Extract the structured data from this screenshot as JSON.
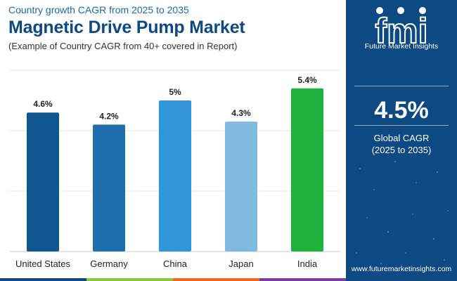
{
  "header": {
    "kicker": "Country growth CAGR from 2025 to 2035",
    "title": "Magnetic Drive Pump Market",
    "subtitle": "(Example of Country CAGR from 40+ covered in Report)"
  },
  "chart_data": {
    "type": "bar",
    "title": "Magnetic Drive Pump Market",
    "subtitle": "(Example of Country CAGR from 40+ covered in Report)",
    "categories": [
      "United States",
      "Germany",
      "China",
      "Japan",
      "India"
    ],
    "values": [
      4.6,
      4.2,
      5.0,
      4.3,
      5.4
    ],
    "value_labels": [
      "4.6%",
      "4.2%",
      "5%",
      "4.3%",
      "5.4%"
    ],
    "colors": [
      "#0d568f",
      "#1f6fae",
      "#3197da",
      "#80b9e2",
      "#1db33b"
    ],
    "ylim": [
      0,
      6
    ],
    "grid": true,
    "xlabel": "",
    "ylabel": ""
  },
  "panel": {
    "logo_text": "Future Market Insights",
    "logo_letters": "fmi",
    "metric_value": "4.5%",
    "metric_label": "Global CAGR",
    "metric_period": "(2025 to 2035)",
    "website": "www.futuremarketinsights.com"
  },
  "colors": {
    "panel_bg": "#0d4a83",
    "title": "#0d4a83",
    "kicker": "#1a6aa8",
    "footer": [
      "#0d4a83",
      "#8cc63f",
      "#f26522",
      "#7b3fa0"
    ]
  }
}
